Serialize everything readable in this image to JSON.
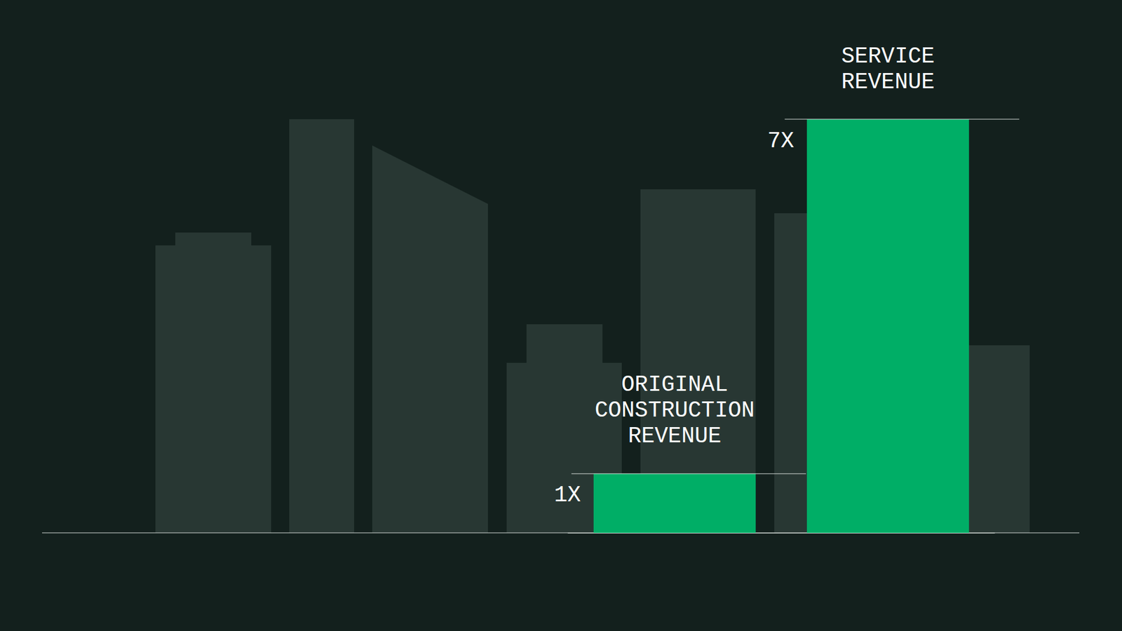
{
  "chart_data": {
    "type": "bar",
    "categories": [
      "ORIGINAL\nCONSTRUCTION\nREVENUE",
      "SERVICE\nREVENUE"
    ],
    "values": [
      1,
      7
    ],
    "value_labels": [
      "1X",
      "7X"
    ],
    "data_labels": true,
    "tick_labels": false,
    "color": "#00ae66",
    "ylim": [
      0,
      7
    ]
  }
}
